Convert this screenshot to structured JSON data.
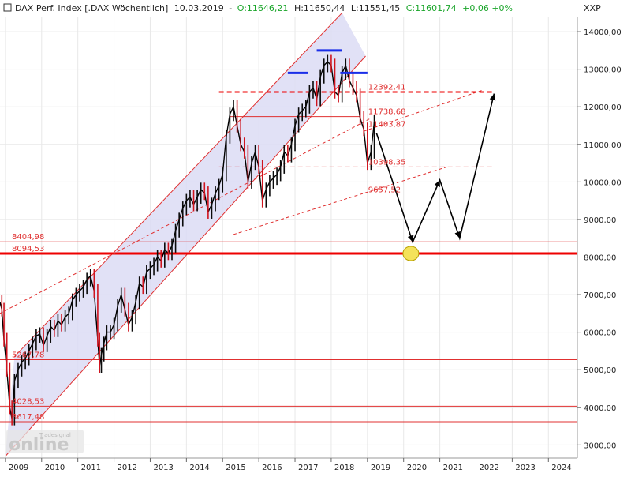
{
  "header": {
    "instrument": "DAX Perf. Index [.DAX  Wöchentlich]",
    "date": "10.03.2019",
    "ohlc_open": "O:11646,21",
    "ohlc_high": "H:11650,44",
    "ohlc_low": "L:11551,45",
    "ohlc_close": "C:11601,74",
    "change": "+0,06 +0%"
  },
  "currency": "XXP",
  "watermark": "Tradesignal online",
  "colors": {
    "background": "#ffffff",
    "price": "#000000",
    "bull": "#0a0a0a",
    "bear": "#d0141e",
    "level": "#e03030",
    "level_strong": "#ee0000",
    "channel_fill": "#dcdcf4",
    "trend_dashed": "#e03030",
    "top_marker": "#1a2ee8",
    "ellipse_fill": "#f4e25a",
    "open_green": "#1aa52a",
    "grid": "#e8e8e8"
  },
  "chart_data": {
    "type": "line",
    "title": "DAX Perf. Index [.DAX  Wöchentlich]",
    "x_axis": {
      "tick_labels": [
        "2009",
        "2010",
        "2011",
        "2012",
        "2013",
        "2014",
        "2015",
        "2016",
        "2017",
        "2018",
        "2019",
        "2020",
        "2021",
        "2022",
        "2023",
        "2024"
      ],
      "range": [
        2008.85,
        2024.8
      ]
    },
    "y_axis": {
      "tick_labels": [
        "3000,00",
        "4000,00",
        "5000,00",
        "6000,00",
        "7000,00",
        "8000,00",
        "9000,00",
        "10000,00",
        "11000,00",
        "12000,00",
        "13000,00",
        "14000,00"
      ],
      "range": [
        2650,
        14380
      ]
    },
    "series": [
      {
        "name": "DAX",
        "x": [
          2008.85,
          2008.9,
          2008.96,
          2009.04,
          2009.12,
          2009.18,
          2009.25,
          2009.35,
          2009.45,
          2009.55,
          2009.65,
          2009.75,
          2009.85,
          2009.95,
          2010.05,
          2010.15,
          2010.25,
          2010.35,
          2010.45,
          2010.55,
          2010.65,
          2010.75,
          2010.85,
          2010.95,
          2011.05,
          2011.15,
          2011.25,
          2011.35,
          2011.45,
          2011.55,
          2011.6,
          2011.65,
          2011.72,
          2011.8,
          2011.9,
          2012.0,
          2012.1,
          2012.2,
          2012.3,
          2012.4,
          2012.5,
          2012.6,
          2012.7,
          2012.8,
          2012.9,
          2013.0,
          2013.1,
          2013.2,
          2013.3,
          2013.4,
          2013.5,
          2013.6,
          2013.7,
          2013.8,
          2013.9,
          2014.0,
          2014.1,
          2014.2,
          2014.3,
          2014.4,
          2014.5,
          2014.6,
          2014.7,
          2014.8,
          2014.9,
          2015.0,
          2015.1,
          2015.2,
          2015.3,
          2015.4,
          2015.5,
          2015.6,
          2015.7,
          2015.8,
          2015.9,
          2016.0,
          2016.1,
          2016.2,
          2016.3,
          2016.4,
          2016.5,
          2016.6,
          2016.7,
          2016.8,
          2016.9,
          2017.0,
          2017.1,
          2017.2,
          2017.3,
          2017.4,
          2017.5,
          2017.6,
          2017.7,
          2017.8,
          2017.9,
          2018.0,
          2018.1,
          2018.2,
          2018.3,
          2018.4,
          2018.5,
          2018.6,
          2018.7,
          2018.8,
          2018.9,
          2019.0,
          2019.1,
          2019.19
        ],
        "values": [
          6800,
          6600,
          5800,
          5000,
          4000,
          3700,
          4700,
          5000,
          5200,
          5300,
          5500,
          5700,
          5900,
          5950,
          5650,
          5900,
          6150,
          6050,
          6300,
          6200,
          6400,
          6500,
          6850,
          7000,
          7100,
          7200,
          7400,
          7500,
          7100,
          5800,
          5100,
          5400,
          5700,
          6000,
          6000,
          6200,
          6700,
          7000,
          6600,
          6200,
          6400,
          6800,
          7300,
          7200,
          7600,
          7700,
          7800,
          8000,
          7900,
          8200,
          8100,
          8300,
          8700,
          9000,
          9300,
          9500,
          9600,
          9400,
          9600,
          9800,
          9700,
          9200,
          9400,
          9700,
          9900,
          10200,
          11200,
          11800,
          12000,
          11500,
          11000,
          10800,
          10000,
          10500,
          10800,
          10400,
          9500,
          9800,
          10000,
          10100,
          10200,
          10400,
          10800,
          10700,
          11000,
          11500,
          11800,
          11900,
          12000,
          12400,
          12500,
          12200,
          12800,
          13100,
          13200,
          13100,
          12400,
          12300,
          12900,
          13100,
          12700,
          12500,
          12300,
          11700,
          11400,
          10500,
          10800,
          11600
        ]
      }
    ],
    "levels": [
      {
        "value": 12392.41,
        "label": "12392,41",
        "style": "dashed",
        "color": "level_strong"
      },
      {
        "value": 11738.68,
        "label": "11738,68",
        "style": "solid",
        "color": "level"
      },
      {
        "value": 11403.87,
        "label": "11403,87",
        "style": "none",
        "color": "level"
      },
      {
        "value": 10398.35,
        "label": "10398,35",
        "style": "dashed",
        "color": "level"
      },
      {
        "value": 9657.52,
        "label": "9657,52",
        "style": "none",
        "color": "level"
      },
      {
        "value": 8404.98,
        "label": "8404,98",
        "style": "solid",
        "color": "level"
      },
      {
        "value": 8094.53,
        "label": "8094,53",
        "style": "solid-thick",
        "color": "level_strong"
      },
      {
        "value": 5267.78,
        "label": "5267,78",
        "style": "solid",
        "color": "level"
      },
      {
        "value": 4028.53,
        "label": "4028,53",
        "style": "solid",
        "color": "level"
      },
      {
        "value": 3617.48,
        "label": "3617,48",
        "style": "solid",
        "color": "level"
      }
    ],
    "channel": {
      "lower_line": [
        [
          2009.0,
          2700
        ],
        [
          2018.95,
          13350
        ]
      ],
      "upper_line": [
        [
          2009.25,
          5350
        ],
        [
          2018.3,
          14500
        ]
      ]
    },
    "trend_lines": [
      {
        "from": [
          2008.85,
          6500
        ],
        "to": [
          2019.1,
          11700
        ],
        "style": "dashed"
      },
      {
        "from": [
          2015.3,
          8600
        ],
        "to": [
          2021.2,
          10400
        ],
        "style": "dashed"
      },
      {
        "from": [
          2018.9,
          11350
        ],
        "to": [
          2022.2,
          12450
        ],
        "style": "dashed"
      }
    ],
    "top_markers": [
      {
        "from": [
          2016.8,
          12900
        ],
        "to": [
          2017.35,
          12900
        ]
      },
      {
        "from": [
          2017.6,
          13500
        ],
        "to": [
          2018.3,
          13500
        ]
      },
      {
        "from": [
          2018.25,
          12900
        ],
        "to": [
          2019.0,
          12900
        ]
      }
    ],
    "forecast_path": {
      "x": [
        2019.25,
        2020.25,
        2021.0,
        2021.55,
        2022.5
      ],
      "values": [
        11300,
        8400,
        10050,
        8500,
        12350
      ]
    },
    "target_marker": {
      "x": 2020.2,
      "value": 8094.53
    },
    "legend": "none",
    "grid": true
  }
}
